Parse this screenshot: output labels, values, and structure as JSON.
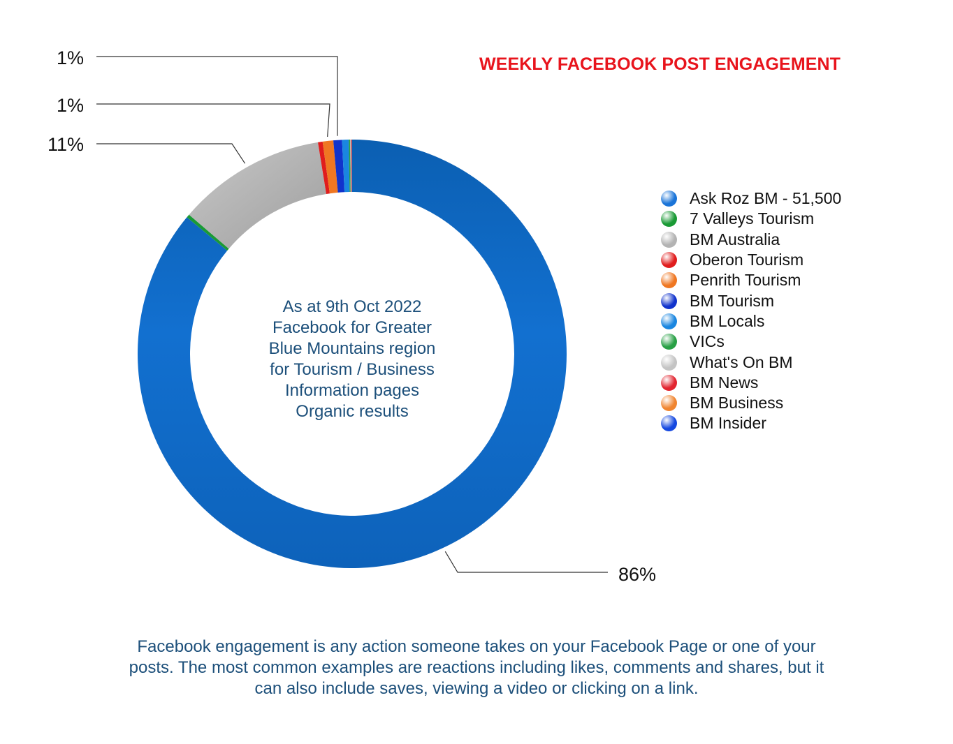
{
  "chart_data": {
    "type": "pie",
    "title": "WEEKLY FACEBOOK POST ENGAGEMENT",
    "categories": [
      "Ask Roz BM - 51,500",
      "7 Valleys Tourism",
      "BM Australia",
      "Oberon Tourism",
      "Penrith Tourism",
      "BM Tourism",
      "BM Locals",
      "VICs",
      "What's On BM",
      "BM News",
      "BM Business",
      "BM Insider"
    ],
    "values": [
      86.0,
      0.25,
      11.2,
      0.35,
      0.8,
      0.65,
      0.5,
      0.1,
      0.05,
      0.05,
      0.03,
      0.02
    ],
    "colors": [
      "#1a74d8",
      "#1a9a35",
      "#b3b3b3",
      "#e01d1d",
      "#ef7722",
      "#1133cc",
      "#1a86e0",
      "#28a045",
      "#c4c4c4",
      "#e22530",
      "#f08530",
      "#1548e0"
    ],
    "data_labels": [
      {
        "text": "86%",
        "series_index": 0
      },
      {
        "text": "11%",
        "series_index": 2
      },
      {
        "text": "1%",
        "series_index": 4
      },
      {
        "text": "1%",
        "series_index": 5
      }
    ],
    "legend_position": "right",
    "center_text": [
      "As at 9th Oct 2022",
      "Facebook for Greater",
      "Blue Mountains region",
      "for Tourism / Business",
      "Information pages",
      "Organic results"
    ]
  },
  "footer": {
    "lines": [
      "Facebook engagement is any action someone takes on your Facebook Page or one of your",
      "posts. The most common examples are reactions including likes, comments and shares, but it",
      "can also include saves, viewing a video or clicking on a link."
    ]
  }
}
